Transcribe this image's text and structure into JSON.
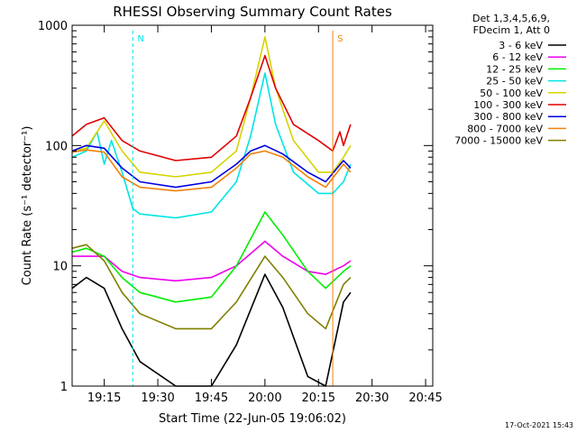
{
  "chart_data": {
    "type": "line",
    "title": "RHESSI Observing Summary Count Rates",
    "xlabel": "Start Time (22-Jun-05 19:06:02)",
    "ylabel": "Count Rate (s⁻¹ detector⁻¹)",
    "yscale": "log",
    "ylim": [
      1,
      1000
    ],
    "xlim": [
      "19:06",
      "20:47"
    ],
    "x_ticks": [
      "19:15",
      "19:30",
      "19:45",
      "20:00",
      "20:15",
      "20:30",
      "20:45"
    ],
    "y_ticks": [
      "1",
      "10",
      "100",
      "1000"
    ],
    "legend_header": [
      "Det 1,3,4,5,6,9,",
      "FDecim 1, Att 0"
    ],
    "legend_position": "right",
    "timestamp": "17-Oct-2021 15:43",
    "markers": [
      {
        "label": "N",
        "time": "19:23",
        "color": "#00e5e5",
        "style": "dashed"
      },
      {
        "label": "S",
        "time": "20:19",
        "color": "#f0820a",
        "style": "solid"
      }
    ],
    "series": [
      {
        "name": "3 - 6 keV",
        "color": "#000000",
        "key_times": [
          "19:06",
          "19:10",
          "19:15",
          "19:20",
          "19:25",
          "19:35",
          "19:45",
          "19:52",
          "20:00",
          "20:05",
          "20:12",
          "20:17",
          "20:22",
          "20:24"
        ],
        "values": [
          6.5,
          8,
          6.5,
          3,
          1.6,
          1,
          1,
          2.2,
          8.5,
          4.5,
          1.2,
          1,
          5,
          6
        ]
      },
      {
        "name": "6 - 12 keV",
        "color": "#ee00ee",
        "key_times": [
          "19:06",
          "19:10",
          "19:15",
          "19:20",
          "19:25",
          "19:35",
          "19:45",
          "19:52",
          "20:00",
          "20:05",
          "20:12",
          "20:17",
          "20:22",
          "20:24"
        ],
        "values": [
          12,
          12,
          12,
          9,
          8,
          7.5,
          8,
          10,
          16,
          12,
          9,
          8.5,
          10,
          11
        ]
      },
      {
        "name": "12 - 25 keV",
        "color": "#00ee00",
        "key_times": [
          "19:06",
          "19:10",
          "19:15",
          "19:20",
          "19:25",
          "19:35",
          "19:45",
          "19:52",
          "20:00",
          "20:05",
          "20:12",
          "20:17",
          "20:22",
          "20:24"
        ],
        "values": [
          13,
          14,
          12,
          8,
          6,
          5,
          5.5,
          10,
          28,
          18,
          9,
          6.5,
          9,
          10
        ]
      },
      {
        "name": "25 - 50 keV",
        "color": "#00e5e5",
        "key_times": [
          "19:06",
          "19:10",
          "19:13",
          "19:15",
          "19:17",
          "19:20",
          "19:23",
          "19:25",
          "19:35",
          "19:45",
          "19:52",
          "19:56",
          "20:00",
          "20:03",
          "20:08",
          "20:15",
          "20:19",
          "20:22",
          "20:24"
        ],
        "values": [
          80,
          90,
          130,
          70,
          110,
          60,
          30,
          27,
          25,
          28,
          50,
          120,
          400,
          150,
          60,
          40,
          40,
          50,
          70
        ]
      },
      {
        "name": "50 - 100 keV",
        "color": "#d4d400",
        "key_times": [
          "19:06",
          "19:10",
          "19:15",
          "19:20",
          "19:25",
          "19:35",
          "19:45",
          "19:52",
          "19:56",
          "20:00",
          "20:03",
          "20:08",
          "20:15",
          "20:19",
          "20:22",
          "20:24"
        ],
        "values": [
          90,
          95,
          160,
          90,
          60,
          55,
          60,
          90,
          250,
          800,
          300,
          110,
          60,
          60,
          80,
          100
        ]
      },
      {
        "name": "100 - 300 keV",
        "color": "#e00000",
        "key_times": [
          "19:06",
          "19:10",
          "19:15",
          "19:20",
          "19:25",
          "19:35",
          "19:45",
          "19:52",
          "19:56",
          "20:00",
          "20:03",
          "20:08",
          "20:15",
          "20:19",
          "20:21",
          "20:22",
          "20:24"
        ],
        "values": [
          120,
          150,
          170,
          110,
          90,
          75,
          80,
          120,
          250,
          560,
          300,
          150,
          110,
          90,
          130,
          100,
          150
        ]
      },
      {
        "name": "300 - 800 keV",
        "color": "#0000e0",
        "key_times": [
          "19:06",
          "19:10",
          "19:15",
          "19:20",
          "19:25",
          "19:35",
          "19:45",
          "19:52",
          "19:56",
          "20:00",
          "20:05",
          "20:12",
          "20:17",
          "20:22",
          "20:24"
        ],
        "values": [
          90,
          100,
          95,
          65,
          50,
          45,
          50,
          70,
          90,
          100,
          85,
          60,
          50,
          75,
          65
        ]
      },
      {
        "name": "800 - 7000 keV",
        "color": "#f0820a",
        "key_times": [
          "19:06",
          "19:10",
          "19:15",
          "19:20",
          "19:25",
          "19:35",
          "19:45",
          "19:52",
          "19:56",
          "20:00",
          "20:05",
          "20:12",
          "20:17",
          "20:22",
          "20:24"
        ],
        "values": [
          88,
          92,
          88,
          55,
          45,
          42,
          45,
          65,
          85,
          90,
          80,
          55,
          45,
          70,
          60
        ]
      },
      {
        "name": "7000 - 15000 keV",
        "color": "#808000",
        "key_times": [
          "19:06",
          "19:10",
          "19:15",
          "19:20",
          "19:25",
          "19:35",
          "19:45",
          "19:52",
          "20:00",
          "20:05",
          "20:12",
          "20:17",
          "20:22",
          "20:24"
        ],
        "values": [
          14,
          15,
          11,
          6,
          4,
          3,
          3,
          5,
          12,
          8,
          4,
          3,
          7,
          8
        ]
      }
    ]
  }
}
